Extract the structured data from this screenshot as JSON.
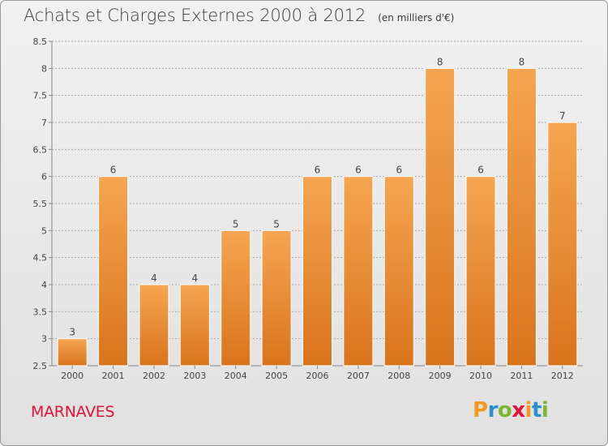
{
  "title": "Achats et Charges Externes 2000 à 2012",
  "unit": "(en milliers d'€)",
  "city": "MARNAVES",
  "logo": {
    "text": "Proxiti",
    "letters": [
      {
        "ch": "P",
        "color": "#f39a1e"
      },
      {
        "ch": "r",
        "color": "#2a8fd0"
      },
      {
        "ch": "o",
        "color": "#7cb82f"
      },
      {
        "ch": "x",
        "color": "#e0143b"
      },
      {
        "ch": "i",
        "color": "#f39a1e"
      },
      {
        "ch": "t",
        "color": "#2a8fd0"
      },
      {
        "ch": "i",
        "color": "#7cb82f"
      }
    ]
  },
  "colors": {
    "bar_top": "#f6a552",
    "bar_bottom": "#d9741c",
    "bar_edge": "#ffffff",
    "grid": "#a8a8a8",
    "title": "#3a3a3a",
    "city": "#e0143b"
  },
  "chart_data": {
    "type": "bar",
    "title": "Achats et Charges Externes 2000 à 2012",
    "subtitle": "(en milliers d'€)",
    "categories": [
      "2000",
      "2001",
      "2002",
      "2003",
      "2004",
      "2005",
      "2006",
      "2007",
      "2008",
      "2009",
      "2010",
      "2011",
      "2012"
    ],
    "values": [
      3,
      6,
      4,
      4,
      5,
      5,
      6,
      6,
      6,
      8,
      6,
      8,
      7
    ],
    "data_labels": [
      "3",
      "6",
      "4",
      "4",
      "5",
      "5",
      "6",
      "6",
      "6",
      "8",
      "6",
      "8",
      "7"
    ],
    "ylim": [
      2.5,
      8.5
    ],
    "yticks": [
      "2.5",
      "3",
      "3.5",
      "4",
      "4.5",
      "5",
      "5.5",
      "6",
      "6.5",
      "7",
      "7.5",
      "8",
      "8.5"
    ],
    "grid": "horizontal dashed",
    "xlabel": "",
    "ylabel": ""
  }
}
